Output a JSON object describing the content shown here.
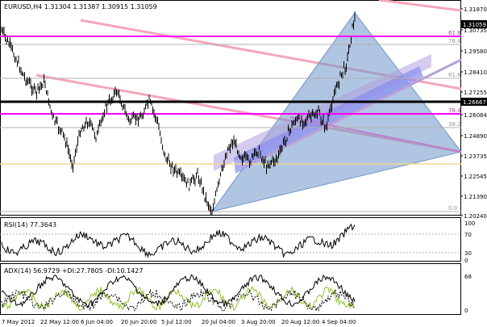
{
  "header": {
    "main": "EURUSD,H4  1.31304 1.31387 1.30915 1.31059",
    "rsi": "RSI(14) 77.3643",
    "adx": "ADX(14) 56.9729 +DI:27.7805 -DI:10.1427"
  },
  "price_axis": {
    "labels": [
      "1.31870",
      "1.30735",
      "1.29580",
      "1.28410",
      "1.27255",
      "1.26084",
      "1.24890",
      "1.23735",
      "1.22545",
      "1.21390",
      "1.20240"
    ],
    "current_price": "1.31059",
    "line_price": "1.26667"
  },
  "rsi_axis": {
    "labels": [
      "100",
      "70",
      "30",
      "0"
    ]
  },
  "adx_axis": {
    "labels": [
      "68",
      "0"
    ]
  },
  "time_axis": {
    "labels": [
      "7 May 2012",
      "22 May 12:00",
      "6 Jun 04:00",
      "20 Jun 20:00",
      "5 Jul 12:00",
      "20 Jul 04:00",
      "3 Aug 20:00",
      "20 Aug 12:00",
      "4 Sep 04:00"
    ]
  },
  "fib_labels": [
    "61.8",
    "76.4",
    "61.8",
    "76.4",
    "38.2",
    "0.0"
  ],
  "colors": {
    "price": "#000000",
    "magenta": "#ff00ff",
    "pink_channel": "#f4a6b8",
    "blue_triangle": "#7096c8",
    "purple_band": "#8c8cf0",
    "adx_green": "#90c030",
    "yellow_line": "#f0d890"
  }
}
